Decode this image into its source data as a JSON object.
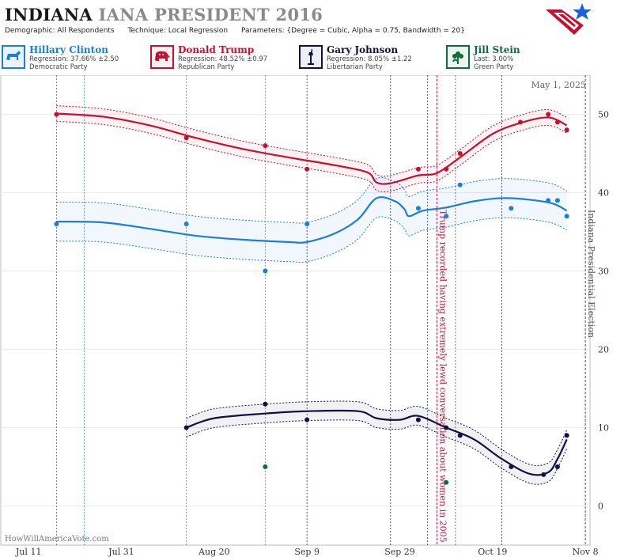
{
  "header": {
    "title_main": "INDIANA ",
    "title_sub": "IANA PRESIDENT 2016",
    "demographic": "Demographic: All Respondents",
    "technique": "Technique: Local Regression",
    "parameters": "Parameters: {Degree = Cubic, Alpha = 0.75, Bandwidth = 20}"
  },
  "candidates": [
    {
      "name": "Hillary Clinton",
      "stat": "Regression: 37.66% ±2.50",
      "party": "Democratic Party",
      "color": "#1a7fd9",
      "icon": "donkey-icon"
    },
    {
      "name": "Donald Trump",
      "stat": "Regression: 48.52% ±0.97",
      "party": "Republican Party",
      "color": "#c8102e",
      "icon": "elephant-icon"
    },
    {
      "name": "Gary Johnson",
      "stat": "Regression: 8.05% ±1.22",
      "party": "Libertarian Party",
      "color": "#111140",
      "icon": "liberty-statue-icon"
    },
    {
      "name": "Jill Stein",
      "stat": "Last: 3.00%",
      "party": "Green Party",
      "color": "#0f6a3c",
      "icon": "flower-icon"
    }
  ],
  "chart_data": {
    "type": "scatter",
    "date_label": "May 1, 2025",
    "watermark": "HowWillAmericaVote.com",
    "x_tick_labels": [
      "Jul 11",
      "Jul 31",
      "Aug 20",
      "Sep 9",
      "Sep 29",
      "Oct 19",
      "Nov 8"
    ],
    "x_ticks": [
      "2016-07-11",
      "2016-07-31",
      "2016-08-20",
      "2016-09-09",
      "2016-09-29",
      "2016-10-19",
      "2016-11-08"
    ],
    "y_ticks": [
      0,
      10,
      20,
      30,
      40,
      50
    ],
    "y_range": [
      -5,
      55
    ],
    "x_range": [
      "2016-07-05",
      "2016-11-09"
    ],
    "grid": true,
    "annotations": [
      {
        "date": "2016-10-07",
        "text": "Trump recorded having extremely lewd conversation about women in 2005",
        "color": "#c8102e"
      },
      {
        "date": "2016-11-08",
        "text": "Indiana Presidential Election",
        "color": "#555555"
      }
    ],
    "poll_dates": [
      "2016-07-17",
      "2016-07-23",
      "2016-08-14",
      "2016-08-31",
      "2016-09-09",
      "2016-09-27",
      "2016-10-05",
      "2016-10-11",
      "2016-10-21"
    ],
    "series": [
      {
        "name": "Donald Trump",
        "color": "#c8102e",
        "points": [
          [
            "2016-07-17",
            50
          ],
          [
            "2016-08-14",
            47
          ],
          [
            "2016-08-31",
            46
          ],
          [
            "2016-09-09",
            43
          ],
          [
            "2016-10-03",
            43
          ],
          [
            "2016-10-09",
            43
          ],
          [
            "2016-10-12",
            45
          ],
          [
            "2016-10-25",
            49
          ],
          [
            "2016-10-31",
            50
          ],
          [
            "2016-11-02",
            49
          ],
          [
            "2016-11-04",
            48
          ]
        ],
        "trend": [
          [
            "2016-07-17",
            50.1
          ],
          [
            "2016-07-27",
            49.7
          ],
          [
            "2016-08-06",
            48.6
          ],
          [
            "2016-08-16",
            47.0
          ],
          [
            "2016-08-26",
            45.6
          ],
          [
            "2016-09-05",
            44.5
          ],
          [
            "2016-09-15",
            43.5
          ],
          [
            "2016-09-22",
            42.6
          ],
          [
            "2016-09-24",
            41.3
          ],
          [
            "2016-09-27",
            41.2
          ],
          [
            "2016-10-03",
            42.2
          ],
          [
            "2016-10-07",
            42.5
          ],
          [
            "2016-10-12",
            44.5
          ],
          [
            "2016-10-19",
            47.5
          ],
          [
            "2016-10-25",
            48.9
          ],
          [
            "2016-10-31",
            49.6
          ],
          [
            "2016-11-04",
            48.6
          ]
        ],
        "band": 1.0
      },
      {
        "name": "Hillary Clinton",
        "color": "#1a7fd9",
        "points": [
          [
            "2016-07-17",
            36
          ],
          [
            "2016-08-14",
            36
          ],
          [
            "2016-08-31",
            30
          ],
          [
            "2016-09-09",
            36
          ],
          [
            "2016-10-03",
            38
          ],
          [
            "2016-10-09",
            37
          ],
          [
            "2016-10-12",
            41
          ],
          [
            "2016-10-23",
            38
          ],
          [
            "2016-10-31",
            39
          ],
          [
            "2016-11-02",
            39
          ],
          [
            "2016-11-04",
            37
          ]
        ],
        "trend": [
          [
            "2016-07-17",
            36.3
          ],
          [
            "2016-07-27",
            36.2
          ],
          [
            "2016-08-06",
            35.4
          ],
          [
            "2016-08-16",
            34.5
          ],
          [
            "2016-08-26",
            34.0
          ],
          [
            "2016-09-05",
            33.7
          ],
          [
            "2016-09-09",
            33.7
          ],
          [
            "2016-09-15",
            34.8
          ],
          [
            "2016-09-20",
            36.6
          ],
          [
            "2016-09-24",
            39.3
          ],
          [
            "2016-09-28",
            38.9
          ],
          [
            "2016-09-30",
            37.9
          ],
          [
            "2016-10-01",
            37.0
          ],
          [
            "2016-10-04",
            37.7
          ],
          [
            "2016-10-09",
            38.1
          ],
          [
            "2016-10-15",
            38.9
          ],
          [
            "2016-10-21",
            39.3
          ],
          [
            "2016-10-27",
            39.1
          ],
          [
            "2016-11-01",
            38.6
          ],
          [
            "2016-11-04",
            37.7
          ]
        ],
        "band": 2.5
      },
      {
        "name": "Gary Johnson",
        "color": "#111140",
        "points": [
          [
            "2016-08-14",
            10
          ],
          [
            "2016-08-31",
            13
          ],
          [
            "2016-09-09",
            11
          ],
          [
            "2016-10-03",
            11
          ],
          [
            "2016-10-09",
            10
          ],
          [
            "2016-10-12",
            9
          ],
          [
            "2016-10-23",
            5
          ],
          [
            "2016-10-30",
            4
          ],
          [
            "2016-11-02",
            5
          ],
          [
            "2016-11-04",
            9
          ]
        ],
        "trend": [
          [
            "2016-08-14",
            10.0
          ],
          [
            "2016-08-20",
            11.2
          ],
          [
            "2016-08-31",
            11.8
          ],
          [
            "2016-09-09",
            12.1
          ],
          [
            "2016-09-20",
            12.1
          ],
          [
            "2016-09-24",
            11.2
          ],
          [
            "2016-09-29",
            11.0
          ],
          [
            "2016-10-03",
            11.5
          ],
          [
            "2016-10-09",
            10.0
          ],
          [
            "2016-10-15",
            8.5
          ],
          [
            "2016-10-21",
            6.0
          ],
          [
            "2016-10-27",
            4.1
          ],
          [
            "2016-10-31",
            4.3
          ],
          [
            "2016-11-02",
            6.0
          ],
          [
            "2016-11-04",
            8.5
          ]
        ],
        "band": 1.2
      },
      {
        "name": "Jill Stein",
        "color": "#0f6a3c",
        "points": [
          [
            "2016-08-31",
            5
          ],
          [
            "2016-10-09",
            3
          ]
        ],
        "trend": [],
        "band": 0
      }
    ]
  }
}
